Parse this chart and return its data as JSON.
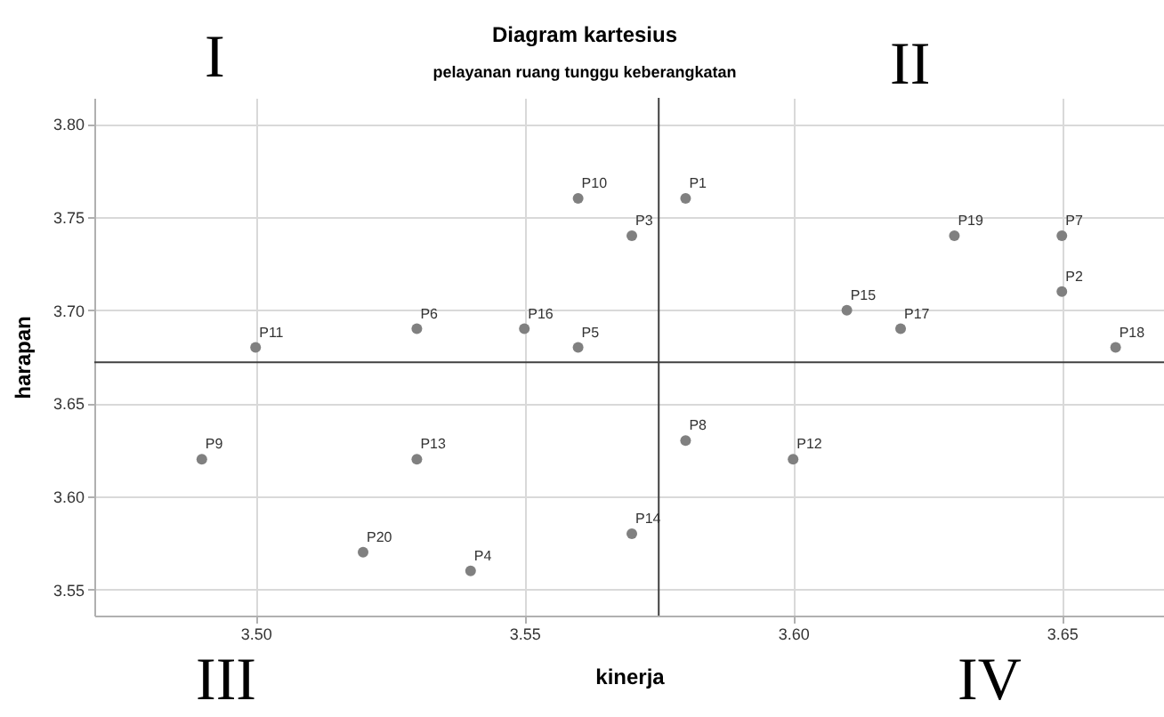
{
  "chart_data": {
    "type": "scatter",
    "title": "Diagram kartesius",
    "subtitle": "pelayanan ruang tunggu keberangkatan",
    "xlabel": "kinerja",
    "ylabel": "harapan",
    "x": [
      3.58,
      3.65,
      3.57,
      3.54,
      3.56,
      3.53,
      3.65,
      3.58,
      3.49,
      3.56,
      3.5,
      3.6,
      3.53,
      3.57,
      3.61,
      3.55,
      3.62,
      3.66,
      3.63,
      3.52
    ],
    "series": [
      {
        "color": "#808080",
        "values": [
          3.76,
          3.71,
          3.74,
          3.56,
          3.68,
          3.69,
          3.74,
          3.63,
          3.62,
          3.76,
          3.68,
          3.62,
          3.62,
          3.58,
          3.7,
          3.69,
          3.69,
          3.68,
          3.74,
          3.57
        ]
      }
    ],
    "xlim": [
      3.47,
      3.669
    ],
    "xticks": [
      {
        "value": 3.5,
        "label": "3.50"
      },
      {
        "value": 3.55,
        "label": "3.55"
      },
      {
        "value": 3.6,
        "label": "3.60"
      },
      {
        "value": 3.65,
        "label": "3.65"
      }
    ],
    "ylim": [
      3.536,
      3.814
    ],
    "yticks": [
      {
        "value": 3.55,
        "label": "3.55"
      },
      {
        "value": 3.6,
        "label": "3.60"
      },
      {
        "value": 3.65,
        "label": "3.65"
      },
      {
        "value": 3.7,
        "label": "3.70"
      },
      {
        "value": 3.75,
        "label": "3.75"
      },
      {
        "value": 3.8,
        "label": "3.80"
      }
    ],
    "grid": true,
    "marker": "circle",
    "ref_lines": [
      {
        "axis": "x",
        "value": 3.575,
        "color": "#404040"
      },
      {
        "axis": "y",
        "value": 3.672,
        "color": "#404040"
      }
    ],
    "annotations": [
      "I",
      "II",
      "III",
      "IV",
      {
        "text": "P1",
        "x": 3.58,
        "y": 3.76
      },
      {
        "text": "P2",
        "x": 3.65,
        "y": 3.71
      },
      {
        "text": "P3",
        "x": 3.57,
        "y": 3.74
      },
      {
        "text": "P4",
        "x": 3.54,
        "y": 3.56
      },
      {
        "text": "P5",
        "x": 3.56,
        "y": 3.68
      },
      {
        "text": "P6",
        "x": 3.53,
        "y": 3.69
      },
      {
        "text": "P7",
        "x": 3.65,
        "y": 3.74
      },
      {
        "text": "P8",
        "x": 3.58,
        "y": 3.63
      },
      {
        "text": "P9",
        "x": 3.49,
        "y": 3.62
      },
      {
        "text": "P10",
        "x": 3.56,
        "y": 3.76
      },
      {
        "text": "P11",
        "x": 3.5,
        "y": 3.68
      },
      {
        "text": "P12",
        "x": 3.6,
        "y": 3.62
      },
      {
        "text": "P13",
        "x": 3.53,
        "y": 3.62
      },
      {
        "text": "P14",
        "x": 3.57,
        "y": 3.58
      },
      {
        "text": "P15",
        "x": 3.61,
        "y": 3.7
      },
      {
        "text": "P16",
        "x": 3.55,
        "y": 3.69
      },
      {
        "text": "P17",
        "x": 3.62,
        "y": 3.69
      },
      {
        "text": "P18",
        "x": 3.66,
        "y": 3.68
      },
      {
        "text": "P19",
        "x": 3.63,
        "y": 3.74
      },
      {
        "text": "P20",
        "x": 3.52,
        "y": 3.57
      }
    ]
  }
}
